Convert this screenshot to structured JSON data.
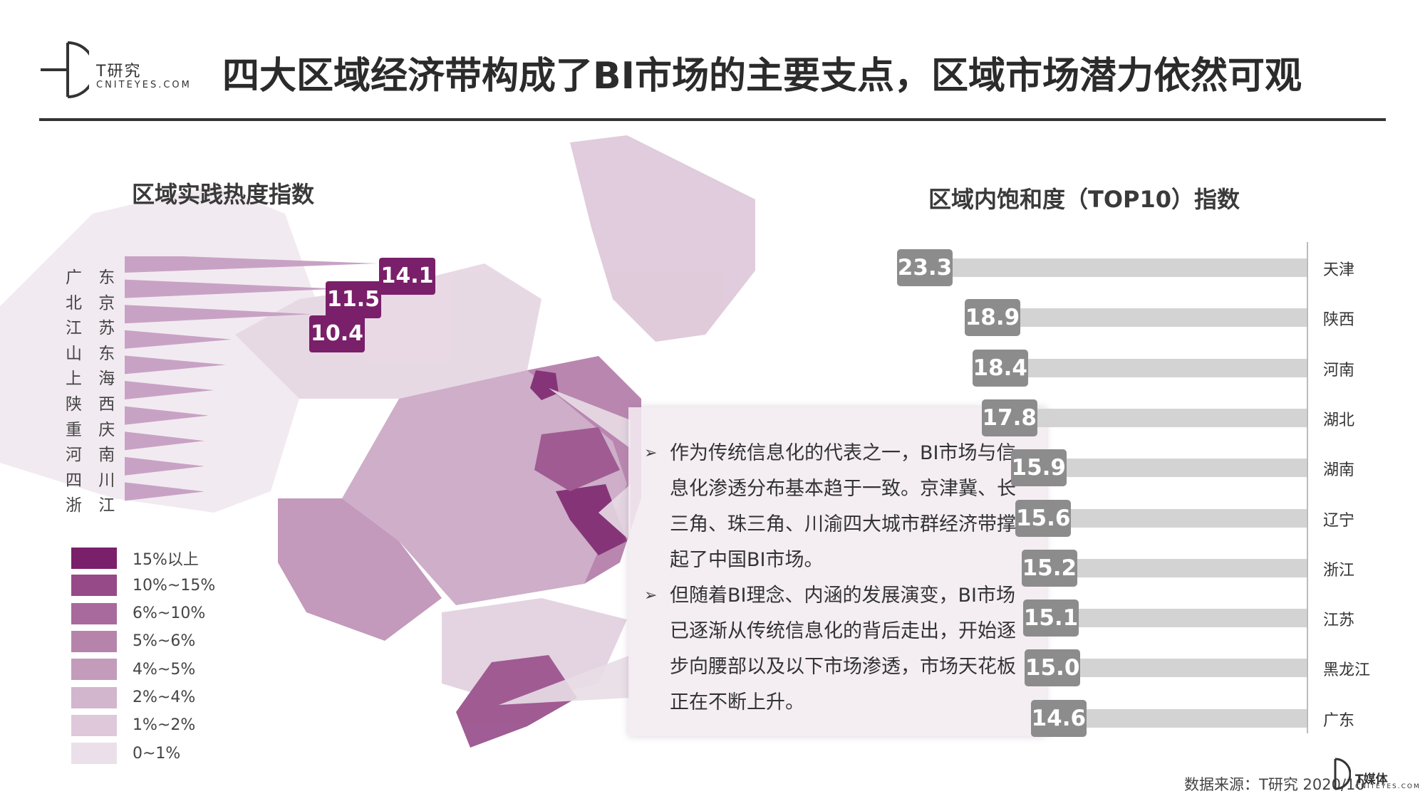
{
  "header": {
    "logo_text": "T研究",
    "logo_sub": "CNITEYES.COM",
    "title": "四大区域经济带构成了BI市场的主要支点，区域市场潜力依然可观"
  },
  "left_chart": {
    "subtitle": "区域实践热度指数",
    "provinces": [
      "广 东",
      "北 京",
      "江 苏",
      "山 东",
      "上 海",
      "陕 西",
      "重 庆",
      "河 南",
      "四 川",
      "浙 江"
    ],
    "top_values": [
      14.1,
      11.5,
      10.4
    ],
    "wedge_color": "#c8a2c4",
    "callout_color": "#7a1f6a"
  },
  "legend": [
    {
      "label": "15%以上",
      "color": "#7a1f6a"
    },
    {
      "label": "10%~15%",
      "color": "#964a88"
    },
    {
      "label": "6%~10%",
      "color": "#a86a9d"
    },
    {
      "label": "5%~6%",
      "color": "#b684ab"
    },
    {
      "label": "4%~5%",
      "color": "#c29cba"
    },
    {
      "label": "2%~4%",
      "color": "#d2b6cd"
    },
    {
      "label": "1%~2%",
      "color": "#dec8da"
    },
    {
      "label": "0~1%",
      "color": "#ebe0e9"
    }
  ],
  "text_box": {
    "bullet_glyph": "➢",
    "bullets": [
      [
        "作为传统信息化的代表之一，BI市场与信",
        "息化渗透分布基本趋于一致。京津冀、长",
        "三角、珠三角、川渝四大城市群经济带撑",
        "起了中国BI市场。"
      ],
      [
        "但随着BI理念、内涵的发展演变，BI市场",
        "已逐渐从传统信息化的背后走出，开始逐",
        "步向腰部以及以下市场渗透，市场天花板",
        "正在不断上升。"
      ]
    ]
  },
  "chart_data": {
    "type": "bar",
    "title": "区域内饱和度（TOP10）指数",
    "categories": [
      "天津",
      "陕西",
      "河南",
      "湖北",
      "湖南",
      "辽宁",
      "浙江",
      "江苏",
      "黑龙江",
      "广东"
    ],
    "values": [
      23.3,
      18.9,
      18.4,
      17.8,
      15.9,
      15.6,
      15.2,
      15.1,
      15.0,
      14.6
    ],
    "orientation": "horizontal",
    "bar_color": "#d3d3d3",
    "label_color": "#8c8c8c"
  },
  "footer": {
    "source": "数据来源：T研究 2020/10",
    "brand": "T媒体",
    "brand_sub": "CNITEYES.COM"
  }
}
